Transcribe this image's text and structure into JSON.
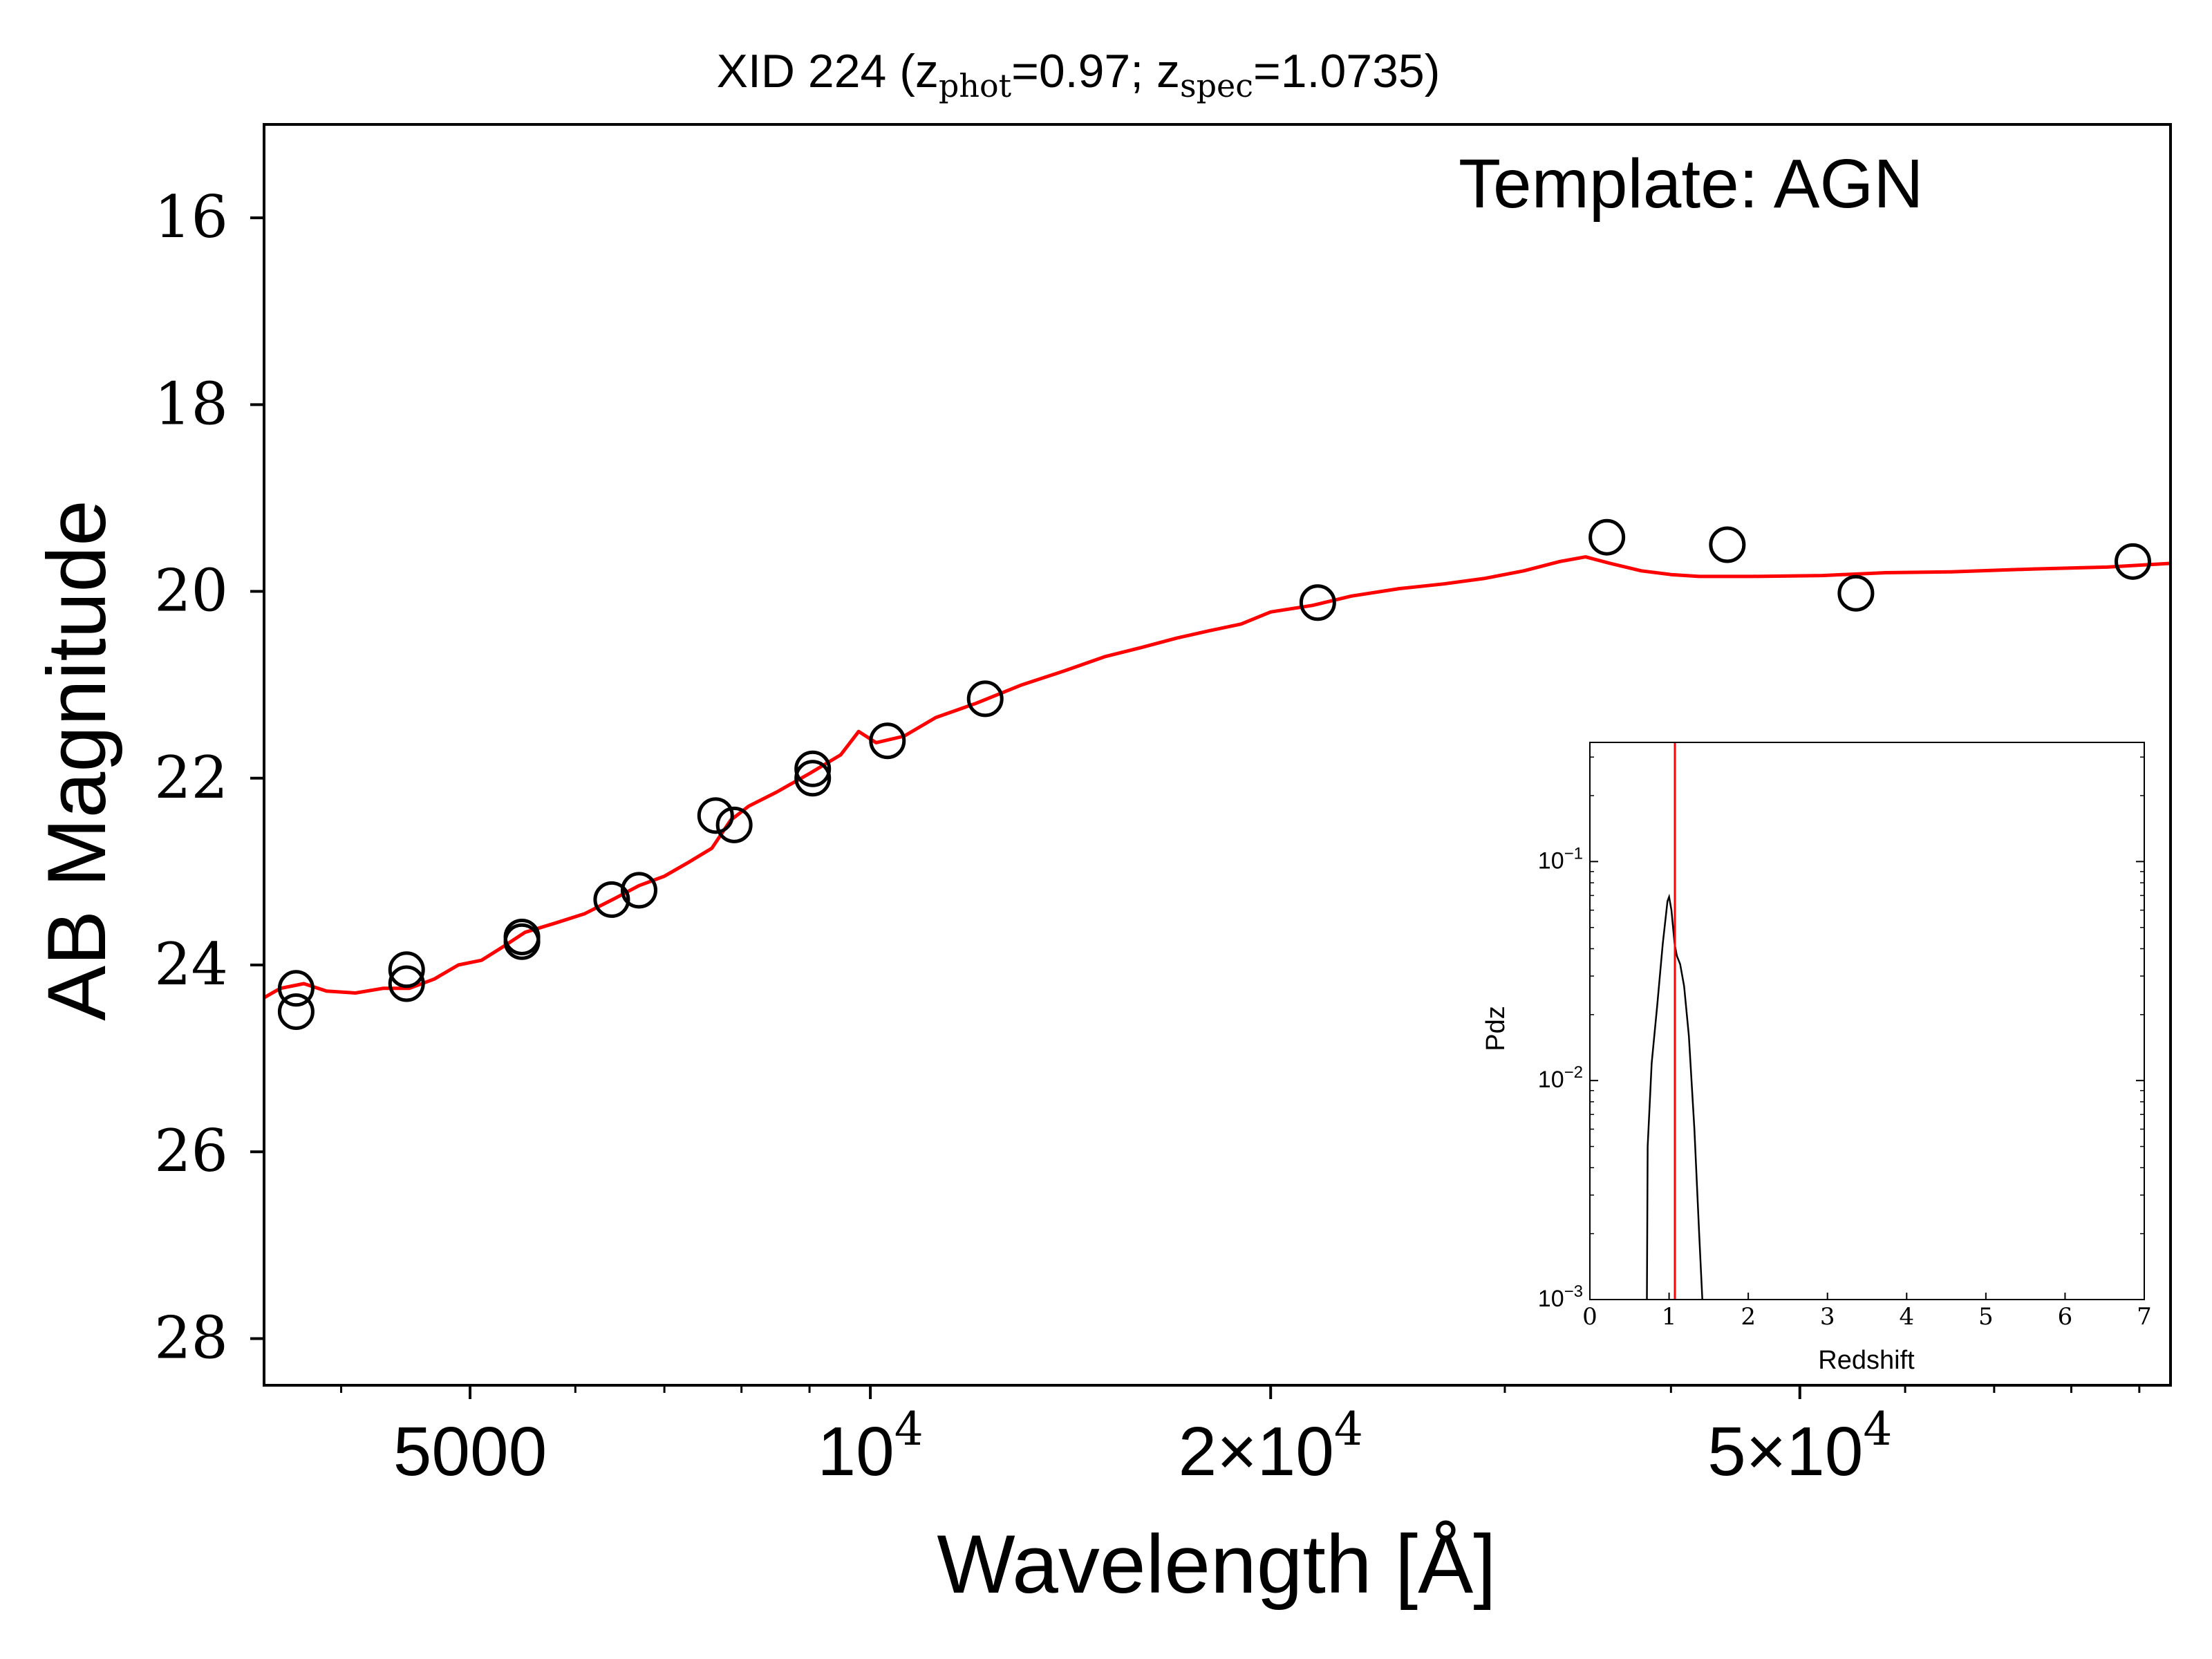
{
  "chart_data": [
    {
      "type": "scatter",
      "title_main": "XID 224 (z",
      "title_sub1": "phot",
      "title_mid": "=0.97; z",
      "title_sub2": "spec",
      "title_end": "=1.0735)",
      "annotation": "Template: AGN",
      "xlabel": "Wavelength [Å]",
      "ylabel": "AB Magnitude",
      "xscale": "log",
      "xlim": [
        3500,
        95000
      ],
      "ylim": [
        28.5,
        15
      ],
      "y_inverted": true,
      "yticks": [
        16,
        18,
        20,
        22,
        24,
        26,
        28
      ],
      "ytick_labels": [
        "16",
        "18",
        "20",
        "22",
        "24",
        "26",
        "28"
      ],
      "xticks": [
        {
          "value": 5000,
          "label": "5000"
        },
        {
          "value": 10000,
          "label": "10",
          "sup": "4"
        },
        {
          "value": 20000,
          "label": "2×10",
          "sup": "4"
        },
        {
          "value": 50000,
          "label": "5×10",
          "sup": "4"
        }
      ],
      "x_minor_ticks": [
        4000,
        6000,
        7000,
        8000,
        9000,
        30000,
        40000,
        60000,
        70000,
        80000,
        90000
      ],
      "series": [
        {
          "kind": "photometry",
          "marker": "open-circle",
          "color": "#000000",
          "points": [
            {
              "x": 3700,
              "y": 24.5
            },
            {
              "x": 3700,
              "y": 24.25
            },
            {
              "x": 4480,
              "y": 24.2
            },
            {
              "x": 4480,
              "y": 24.05
            },
            {
              "x": 5470,
              "y": 23.75
            },
            {
              "x": 5470,
              "y": 23.7
            },
            {
              "x": 6390,
              "y": 23.3
            },
            {
              "x": 6700,
              "y": 23.2
            },
            {
              "x": 7650,
              "y": 22.4
            },
            {
              "x": 7900,
              "y": 22.5
            },
            {
              "x": 9050,
              "y": 22.0
            },
            {
              "x": 9050,
              "y": 21.9
            },
            {
              "x": 10300,
              "y": 21.6
            },
            {
              "x": 12200,
              "y": 21.15
            },
            {
              "x": 21700,
              "y": 20.12
            },
            {
              "x": 35800,
              "y": 19.42
            },
            {
              "x": 44100,
              "y": 19.5
            },
            {
              "x": 55100,
              "y": 20.02
            },
            {
              "x": 89000,
              "y": 19.68
            }
          ]
        },
        {
          "kind": "template",
          "color": "#ff0000",
          "points": [
            {
              "x": 3500,
              "y": 24.35
            },
            {
              "x": 3600,
              "y": 24.25
            },
            {
              "x": 3750,
              "y": 24.2
            },
            {
              "x": 3900,
              "y": 24.28
            },
            {
              "x": 4100,
              "y": 24.3
            },
            {
              "x": 4300,
              "y": 24.25
            },
            {
              "x": 4500,
              "y": 24.25
            },
            {
              "x": 4700,
              "y": 24.15
            },
            {
              "x": 4900,
              "y": 24.0
            },
            {
              "x": 5100,
              "y": 23.95
            },
            {
              "x": 5300,
              "y": 23.8
            },
            {
              "x": 5500,
              "y": 23.65
            },
            {
              "x": 5800,
              "y": 23.55
            },
            {
              "x": 6100,
              "y": 23.45
            },
            {
              "x": 6400,
              "y": 23.3
            },
            {
              "x": 6700,
              "y": 23.15
            },
            {
              "x": 7000,
              "y": 23.05
            },
            {
              "x": 7300,
              "y": 22.9
            },
            {
              "x": 7600,
              "y": 22.75
            },
            {
              "x": 7850,
              "y": 22.45
            },
            {
              "x": 8100,
              "y": 22.3
            },
            {
              "x": 8500,
              "y": 22.15
            },
            {
              "x": 9000,
              "y": 21.95
            },
            {
              "x": 9500,
              "y": 21.75
            },
            {
              "x": 9800,
              "y": 21.5
            },
            {
              "x": 10100,
              "y": 21.62
            },
            {
              "x": 10600,
              "y": 21.55
            },
            {
              "x": 11200,
              "y": 21.35
            },
            {
              "x": 12000,
              "y": 21.2
            },
            {
              "x": 13000,
              "y": 21.0
            },
            {
              "x": 14000,
              "y": 20.85
            },
            {
              "x": 15000,
              "y": 20.7
            },
            {
              "x": 16000,
              "y": 20.6
            },
            {
              "x": 17000,
              "y": 20.5
            },
            {
              "x": 18000,
              "y": 20.42
            },
            {
              "x": 19000,
              "y": 20.35
            },
            {
              "x": 20000,
              "y": 20.22
            },
            {
              "x": 21500,
              "y": 20.15
            },
            {
              "x": 23000,
              "y": 20.05
            },
            {
              "x": 25000,
              "y": 19.97
            },
            {
              "x": 27000,
              "y": 19.92
            },
            {
              "x": 29000,
              "y": 19.86
            },
            {
              "x": 31000,
              "y": 19.78
            },
            {
              "x": 33000,
              "y": 19.68
            },
            {
              "x": 34500,
              "y": 19.63
            },
            {
              "x": 36000,
              "y": 19.7
            },
            {
              "x": 38000,
              "y": 19.78
            },
            {
              "x": 40000,
              "y": 19.82
            },
            {
              "x": 42000,
              "y": 19.84
            },
            {
              "x": 46000,
              "y": 19.84
            },
            {
              "x": 52000,
              "y": 19.83
            },
            {
              "x": 58000,
              "y": 19.8
            },
            {
              "x": 65000,
              "y": 19.79
            },
            {
              "x": 75000,
              "y": 19.76
            },
            {
              "x": 85000,
              "y": 19.74
            },
            {
              "x": 95000,
              "y": 19.7
            }
          ]
        }
      ]
    },
    {
      "type": "line",
      "ylabel": "Pdz",
      "xlabel": "Redshift",
      "xlim": [
        0,
        7
      ],
      "yscale": "log",
      "ylim": [
        0.001,
        0.35
      ],
      "xticks": [
        0,
        1,
        2,
        3,
        4,
        5,
        6,
        7
      ],
      "xtick_labels": [
        "0",
        "1",
        "2",
        "3",
        "4",
        "5",
        "6",
        "7"
      ],
      "yticks": [
        {
          "value": 0.001,
          "base": "10",
          "exp": "−3"
        },
        {
          "value": 0.01,
          "base": "10",
          "exp": "−2"
        },
        {
          "value": 0.1,
          "base": "10",
          "exp": "−1"
        }
      ],
      "series": [
        {
          "kind": "pdz",
          "color": "#000000",
          "points": [
            {
              "x": 0.72,
              "y": 0.001
            },
            {
              "x": 0.73,
              "y": 0.005
            },
            {
              "x": 0.78,
              "y": 0.012
            },
            {
              "x": 0.85,
              "y": 0.022
            },
            {
              "x": 0.92,
              "y": 0.042
            },
            {
              "x": 0.98,
              "y": 0.066
            },
            {
              "x": 1.0,
              "y": 0.069
            },
            {
              "x": 1.03,
              "y": 0.06
            },
            {
              "x": 1.07,
              "y": 0.042
            },
            {
              "x": 1.1,
              "y": 0.037
            },
            {
              "x": 1.14,
              "y": 0.034
            },
            {
              "x": 1.19,
              "y": 0.027
            },
            {
              "x": 1.25,
              "y": 0.016
            },
            {
              "x": 1.32,
              "y": 0.006
            },
            {
              "x": 1.38,
              "y": 0.002
            },
            {
              "x": 1.42,
              "y": 0.001
            }
          ]
        }
      ],
      "vline": {
        "x": 1.0735,
        "color": "#ff0000"
      }
    }
  ]
}
